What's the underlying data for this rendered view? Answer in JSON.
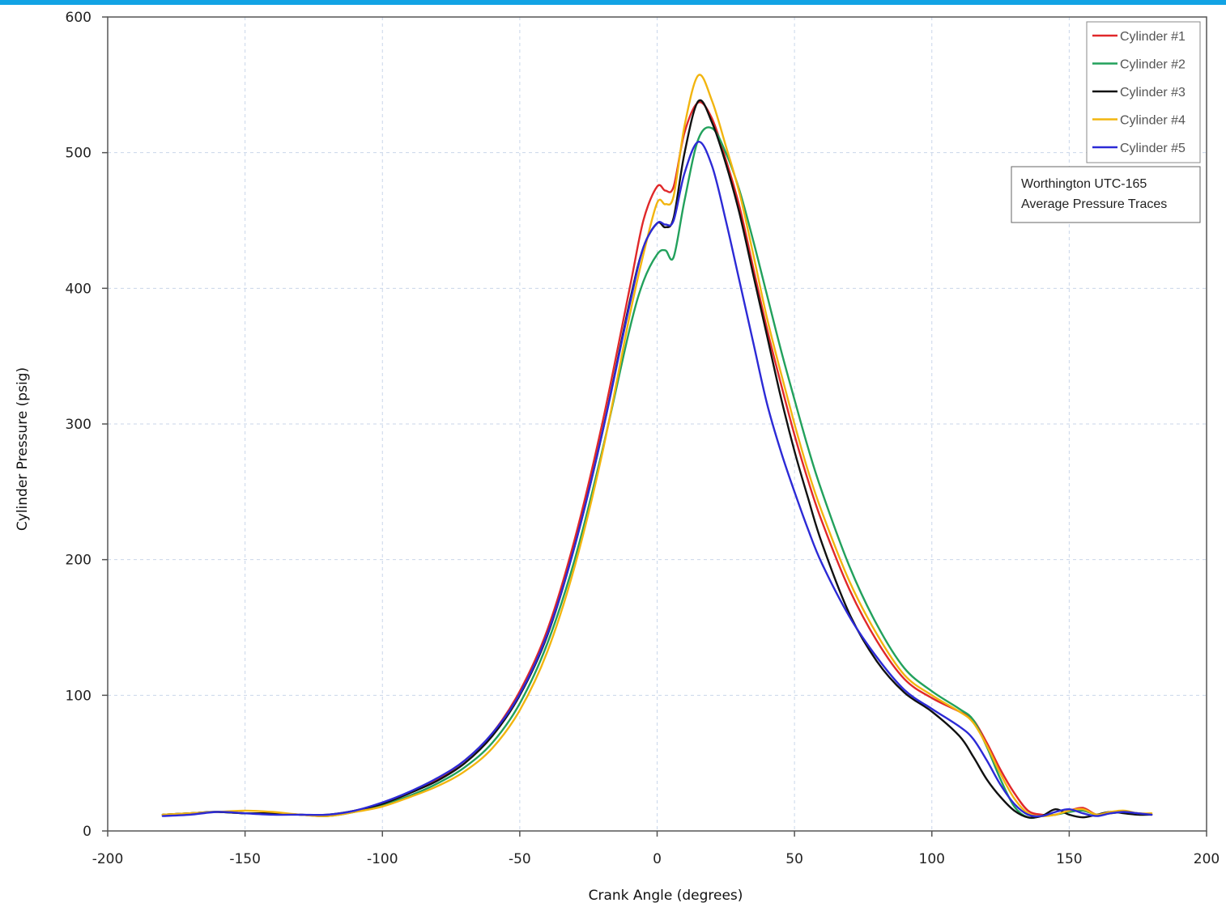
{
  "accent_bar_color": "#12a3e4",
  "chart_data": {
    "type": "line",
    "title": "",
    "xlabel": "Crank Angle (degrees)",
    "ylabel": "Cylinder Pressure (psig)",
    "xlim": [
      -200,
      200
    ],
    "ylim": [
      0,
      600
    ],
    "x_ticks": [
      "-200",
      "-150",
      "-100",
      "-50",
      "0",
      "50",
      "100",
      "150",
      "200"
    ],
    "y_ticks": [
      "0",
      "100",
      "200",
      "300",
      "400",
      "500",
      "600"
    ],
    "grid": true,
    "legend_position": "top-right",
    "annotation": [
      "Worthington UTC-165",
      "Average Pressure Traces"
    ],
    "x": [
      -180,
      -170,
      -160,
      -150,
      -140,
      -130,
      -120,
      -110,
      -100,
      -90,
      -80,
      -70,
      -60,
      -50,
      -40,
      -30,
      -20,
      -10,
      -5,
      0,
      3,
      6,
      10,
      15,
      20,
      25,
      30,
      35,
      40,
      45,
      50,
      55,
      60,
      70,
      80,
      90,
      100,
      110,
      115,
      120,
      125,
      130,
      135,
      140,
      145,
      150,
      155,
      160,
      165,
      170,
      175,
      180
    ],
    "series": [
      {
        "name": "Cylinder #1",
        "color": "#e0282a",
        "values": [
          12,
          13,
          14,
          13,
          13,
          12,
          11,
          15,
          20,
          28,
          38,
          52,
          72,
          103,
          148,
          215,
          300,
          400,
          450,
          475,
          472,
          475,
          515,
          537,
          525,
          495,
          460,
          415,
          370,
          330,
          292,
          258,
          228,
          178,
          140,
          112,
          98,
          88,
          82,
          65,
          45,
          28,
          15,
          12,
          12,
          15,
          17,
          12,
          13,
          14,
          13,
          12
        ]
      },
      {
        "name": "Cylinder #2",
        "color": "#22a15c",
        "values": [
          12,
          13,
          14,
          13,
          13,
          12,
          11,
          14,
          19,
          26,
          35,
          47,
          65,
          94,
          138,
          200,
          280,
          370,
          405,
          425,
          428,
          423,
          465,
          510,
          518,
          500,
          472,
          435,
          395,
          355,
          318,
          282,
          250,
          195,
          152,
          120,
          103,
          90,
          82,
          62,
          38,
          18,
          10,
          11,
          12,
          14,
          15,
          12,
          13,
          14,
          13,
          12
        ]
      },
      {
        "name": "Cylinder #3",
        "color": "#111111",
        "values": [
          12,
          13,
          14,
          13,
          13,
          12,
          12,
          15,
          20,
          28,
          37,
          50,
          70,
          100,
          144,
          210,
          293,
          390,
          430,
          448,
          445,
          452,
          500,
          538,
          522,
          492,
          455,
          410,
          365,
          320,
          280,
          245,
          212,
          160,
          125,
          102,
          88,
          70,
          55,
          38,
          25,
          15,
          10,
          11,
          16,
          12,
          10,
          12,
          14,
          13,
          12,
          12
        ]
      },
      {
        "name": "Cylinder #4",
        "color": "#f2b50f",
        "values": [
          12,
          13,
          14,
          15,
          14,
          12,
          11,
          14,
          18,
          25,
          33,
          44,
          61,
          89,
          132,
          195,
          278,
          380,
          425,
          463,
          462,
          468,
          520,
          557,
          538,
          505,
          470,
          425,
          378,
          338,
          300,
          265,
          235,
          184,
          145,
          115,
          100,
          88,
          80,
          63,
          42,
          24,
          13,
          11,
          12,
          15,
          16,
          12,
          14,
          15,
          13,
          13
        ]
      },
      {
        "name": "Cylinder #5",
        "color": "#2c2ad6",
        "values": [
          11,
          12,
          14,
          13,
          12,
          12,
          12,
          15,
          21,
          29,
          39,
          52,
          72,
          101,
          145,
          210,
          293,
          388,
          430,
          448,
          447,
          450,
          485,
          508,
          490,
          450,
          405,
          360,
          315,
          280,
          250,
          222,
          197,
          158,
          128,
          104,
          90,
          77,
          68,
          52,
          34,
          20,
          12,
          11,
          14,
          16,
          13,
          11,
          13,
          14,
          13,
          12
        ]
      }
    ]
  }
}
